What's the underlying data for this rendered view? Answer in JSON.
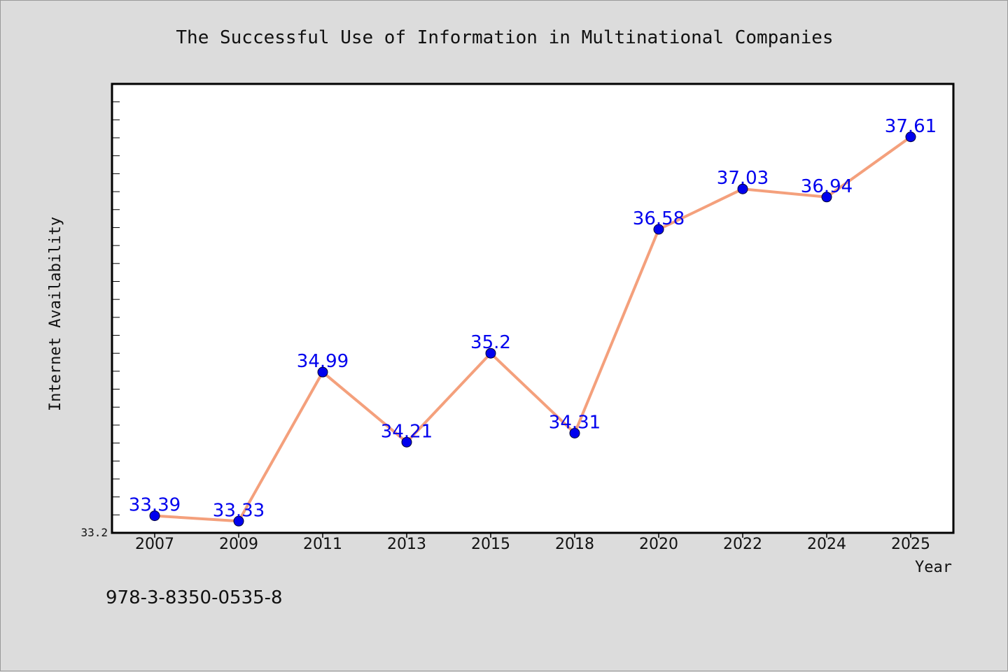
{
  "chart_data": {
    "type": "line",
    "title": "The Successful Use of Information in Multinational Companies",
    "xlabel": "Year",
    "ylabel": "Internet Availability",
    "categories": [
      "2007",
      "2009",
      "2011",
      "2013",
      "2015",
      "2018",
      "2020",
      "2022",
      "2024",
      "2025"
    ],
    "series": [
      {
        "values": [
          33.39,
          33.33,
          34.99,
          34.21,
          35.2,
          34.31,
          36.58,
          37.03,
          36.94,
          37.61
        ],
        "data_labels": [
          "33.39",
          "33.33",
          "34.99",
          "34.21",
          "35.2",
          "34.31",
          "36.58",
          "37.03",
          "36.94",
          "37.61"
        ]
      }
    ],
    "y_tick_labels": [
      "33.2"
    ],
    "ylim": [
      33.2,
      38.2
    ],
    "grid": false,
    "colors": {
      "line": "#f4a07c",
      "marker": "#0000ee",
      "marker_edge": "#000033",
      "data_label": "#0000ee",
      "background": "#dcdcdc",
      "plot_background": "#ffffff"
    }
  },
  "footer": {
    "isbn": "978-3-8350-0535-8"
  }
}
